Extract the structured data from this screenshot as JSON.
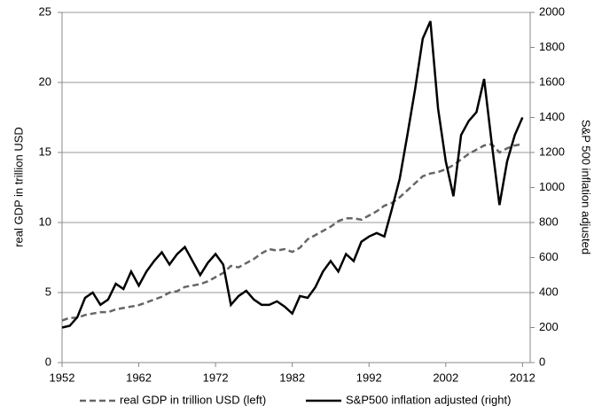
{
  "chart_data": {
    "type": "line",
    "y_label": "real GDP in trillion USD",
    "y2_label": "S&P 500 inflation adjusted",
    "x": [
      1952,
      1953,
      1954,
      1955,
      1956,
      1957,
      1958,
      1959,
      1960,
      1961,
      1962,
      1963,
      1964,
      1965,
      1966,
      1967,
      1968,
      1969,
      1970,
      1971,
      1972,
      1973,
      1974,
      1975,
      1976,
      1977,
      1978,
      1979,
      1980,
      1981,
      1982,
      1983,
      1984,
      1985,
      1986,
      1987,
      1988,
      1989,
      1990,
      1991,
      1992,
      1993,
      1994,
      1995,
      1996,
      1997,
      1998,
      1999,
      2000,
      2001,
      2002,
      2003,
      2004,
      2005,
      2006,
      2007,
      2008,
      2009,
      2010,
      2011,
      2012
    ],
    "series": [
      {
        "name": "real GDP in trillion USD (left)",
        "color": "#666666",
        "dash": true,
        "axis": "y",
        "values": [
          3.0,
          3.2,
          3.2,
          3.4,
          3.5,
          3.6,
          3.6,
          3.8,
          3.9,
          4.0,
          4.1,
          4.3,
          4.5,
          4.7,
          5.0,
          5.1,
          5.4,
          5.5,
          5.6,
          5.8,
          6.1,
          6.4,
          6.9,
          6.8,
          7.1,
          7.4,
          7.8,
          8.1,
          8.0,
          8.1,
          7.9,
          8.2,
          8.8,
          9.1,
          9.4,
          9.7,
          10.1,
          10.3,
          10.3,
          10.2,
          10.5,
          10.8,
          11.2,
          11.4,
          11.8,
          12.3,
          12.8,
          13.3,
          13.5,
          13.6,
          13.8,
          14.1,
          14.5,
          14.9,
          15.2,
          15.5,
          15.6,
          15.0,
          15.3,
          15.5,
          15.6
        ]
      },
      {
        "name": "S&P500 inflation adjusted (right)",
        "color": "#000000",
        "dash": false,
        "axis": "y2",
        "values": [
          200,
          210,
          260,
          370,
          400,
          330,
          360,
          450,
          420,
          520,
          440,
          520,
          580,
          630,
          560,
          620,
          660,
          580,
          500,
          570,
          620,
          560,
          330,
          380,
          410,
          360,
          330,
          330,
          350,
          320,
          280,
          380,
          370,
          430,
          520,
          580,
          520,
          620,
          580,
          690,
          720,
          740,
          720,
          880,
          1050,
          1300,
          1560,
          1850,
          1950,
          1450,
          1150,
          950,
          1300,
          1380,
          1430,
          1620,
          1250,
          900,
          1150,
          1300,
          1400
        ]
      }
    ],
    "xlim": [
      1952,
      2013
    ],
    "xticks": [
      1952,
      1962,
      1972,
      1982,
      1992,
      2002,
      2012
    ],
    "ylim": [
      0,
      25
    ],
    "yticks": [
      0,
      5,
      10,
      15,
      20,
      25
    ],
    "y2lim": [
      0,
      2000
    ],
    "y2ticks": [
      0,
      200,
      400,
      600,
      800,
      1000,
      1200,
      1400,
      1600,
      1800,
      2000
    ],
    "grid": true,
    "legend": "bottom"
  }
}
